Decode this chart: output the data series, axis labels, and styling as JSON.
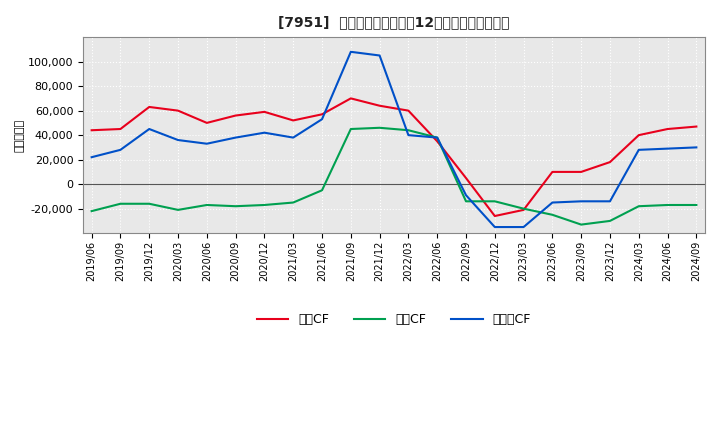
{
  "title": "[7951]  キャッシュフローの12か月移動合計の推移",
  "ylabel": "（百万円）",
  "x_labels": [
    "2019/06",
    "2019/09",
    "2019/12",
    "2020/03",
    "2020/06",
    "2020/09",
    "2020/12",
    "2021/03",
    "2021/06",
    "2021/09",
    "2021/12",
    "2022/03",
    "2022/06",
    "2022/09",
    "2022/12",
    "2023/03",
    "2023/06",
    "2023/09",
    "2023/12",
    "2024/03",
    "2024/06",
    "2024/09"
  ],
  "operating_cf": [
    44000,
    45000,
    63000,
    60000,
    50000,
    56000,
    59000,
    52000,
    57000,
    70000,
    64000,
    60000,
    35000,
    5000,
    -26000,
    -21000,
    10000,
    10000,
    18000,
    40000,
    45000,
    47000
  ],
  "investing_cf": [
    -22000,
    -16000,
    -16000,
    -21000,
    -17000,
    -18000,
    -17000,
    -15000,
    -5000,
    45000,
    46000,
    44000,
    38000,
    -14000,
    -14000,
    -20000,
    -25000,
    -33000,
    -30000,
    -18000,
    -17000,
    -17000
  ],
  "free_cf": [
    22000,
    28000,
    45000,
    36000,
    33000,
    38000,
    42000,
    38000,
    53000,
    108000,
    105000,
    40000,
    38000,
    -9000,
    -35000,
    -35000,
    -15000,
    -14000,
    -14000,
    28000,
    29000,
    30000
  ],
  "operating_color": "#e8001c",
  "investing_color": "#00a050",
  "free_color": "#0050c8",
  "bg_color": "#ffffff",
  "plot_bg_color": "#e8e8e8",
  "grid_color": "#ffffff",
  "ylim": [
    -40000,
    120000
  ],
  "yticks": [
    -20000,
    0,
    20000,
    40000,
    60000,
    80000,
    100000
  ],
  "legend_labels": [
    "営業CF",
    "投資CF",
    "フリーCF"
  ]
}
